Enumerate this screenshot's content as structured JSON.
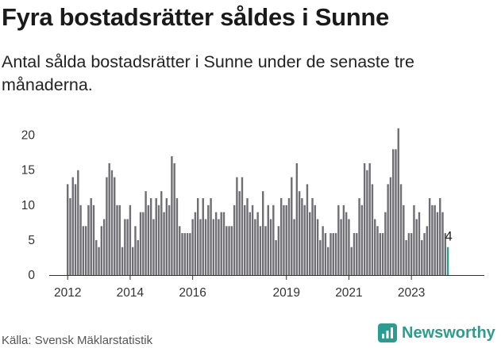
{
  "title": "Fyra bostadsrätter såldes i Sunne",
  "subtitle": "Antal sålda bostadsrätter i Sunne under de senaste tre månaderna.",
  "source": "Källa: Svensk Mäklarstatistik",
  "brand": {
    "name": "Newsworthy",
    "logo_icon": "newsworthy-bar-chart-icon"
  },
  "colors": {
    "bar": "#6e6e73",
    "highlight": "#2a9d8f",
    "axis": "#333333"
  },
  "chart_data": {
    "type": "bar",
    "x_start": "2012-01",
    "ylim": [
      0,
      22
    ],
    "yticks": [
      0,
      5,
      10,
      15,
      20
    ],
    "xticks": [
      "2012",
      "2014",
      "2016",
      "2019",
      "2021",
      "2023"
    ],
    "xtick_dates": [
      "2012-01",
      "2014-01",
      "2016-01",
      "2019-01",
      "2021-01",
      "2023-01"
    ],
    "grid": false,
    "values": [
      13,
      11,
      14,
      13,
      15,
      10,
      7,
      7,
      10,
      11,
      10,
      5,
      4,
      7,
      8,
      14,
      16,
      15,
      14,
      10,
      10,
      4,
      8,
      8,
      10,
      4,
      7,
      5,
      9,
      9,
      12,
      10,
      11,
      8,
      11,
      10,
      12,
      9,
      11,
      10,
      17,
      16,
      11,
      7,
      6,
      6,
      6,
      6,
      8,
      9,
      11,
      8,
      11,
      8,
      10,
      11,
      8,
      9,
      8,
      9,
      9,
      7,
      7,
      7,
      10,
      14,
      12,
      14,
      10,
      11,
      9,
      10,
      8,
      9,
      7,
      12,
      7,
      10,
      8,
      10,
      5,
      7,
      11,
      10,
      10,
      11,
      14,
      8,
      16,
      12,
      11,
      10,
      13,
      9,
      11,
      10,
      8,
      5,
      7,
      6,
      4,
      6,
      6,
      6,
      10,
      8,
      10,
      9,
      8,
      4,
      6,
      6,
      11,
      10,
      16,
      15,
      16,
      13,
      8,
      7,
      6,
      6,
      9,
      13,
      14,
      18,
      18,
      21,
      13,
      10,
      5,
      6,
      6,
      10,
      8,
      9,
      5,
      6,
      7,
      11,
      10,
      10,
      9,
      11,
      9,
      6,
      4
    ],
    "last_value_label": "4"
  }
}
